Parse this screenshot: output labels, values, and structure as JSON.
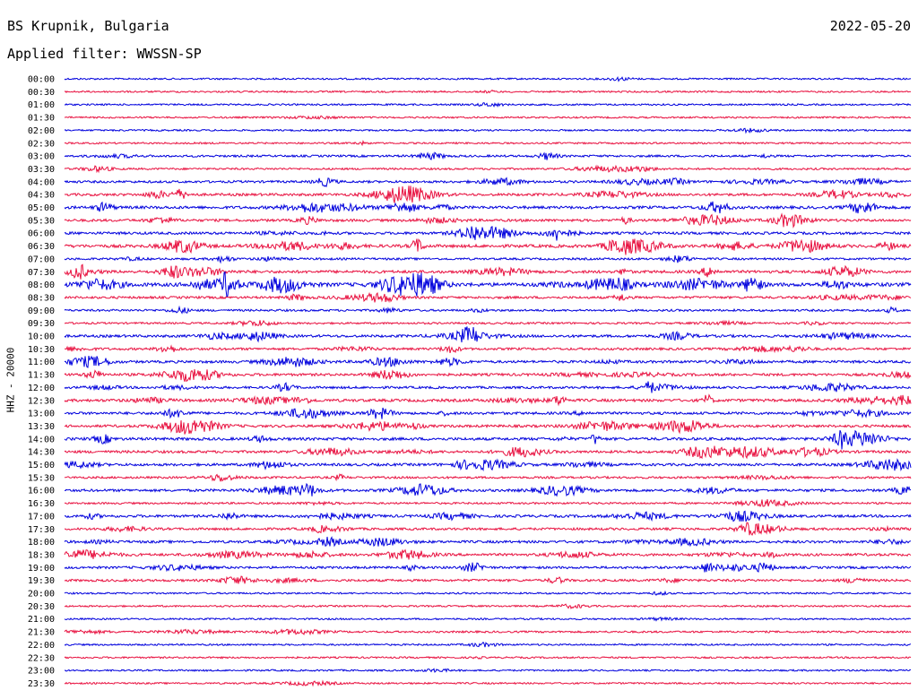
{
  "header": {
    "station": "BS Krupnik, Bulgaria",
    "date": "2022-05-20",
    "filter": "Applied filter: WWSSN-SP"
  },
  "axis": {
    "ylabel": "HHZ - 20000"
  },
  "colors": {
    "even_row": "#0000dd",
    "odd_row": "#e8103f"
  },
  "chart_data": {
    "type": "line",
    "subtype": "helicorder",
    "time_labels": [
      "00:00",
      "00:30",
      "01:00",
      "01:30",
      "02:00",
      "02:30",
      "03:00",
      "03:30",
      "04:00",
      "04:30",
      "05:00",
      "05:30",
      "06:00",
      "06:30",
      "07:00",
      "07:30",
      "08:00",
      "08:30",
      "09:00",
      "09:30",
      "10:00",
      "10:30",
      "11:00",
      "11:30",
      "12:00",
      "12:30",
      "13:00",
      "13:30",
      "14:00",
      "14:30",
      "15:00",
      "15:30",
      "16:00",
      "16:30",
      "17:00",
      "17:30",
      "18:00",
      "18:30",
      "19:00",
      "19:30",
      "20:00",
      "20:30",
      "21:00",
      "21:30",
      "22:00",
      "22:30",
      "23:00",
      "23:30"
    ],
    "ylabel": "HHZ - 20000",
    "activity_level": [
      0.1,
      0.1,
      0.1,
      0.1,
      0.1,
      0.1,
      0.3,
      0.2,
      0.4,
      0.5,
      0.6,
      0.5,
      0.5,
      0.7,
      0.3,
      0.6,
      1.0,
      0.4,
      0.3,
      0.2,
      0.5,
      0.4,
      0.5,
      0.5,
      0.4,
      0.6,
      0.5,
      0.5,
      0.6,
      0.5,
      0.5,
      0.3,
      0.5,
      0.2,
      0.5,
      0.4,
      0.5,
      0.5,
      0.4,
      0.4,
      0.1,
      0.1,
      0.1,
      0.2,
      0.1,
      0.1,
      0.1,
      0.1
    ]
  }
}
